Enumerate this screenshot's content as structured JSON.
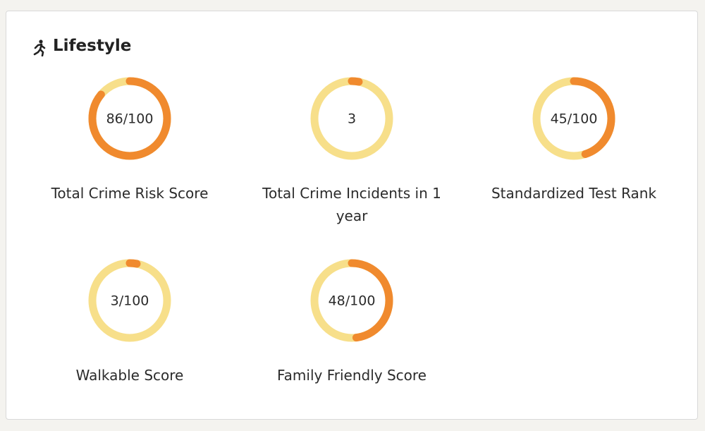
{
  "header": {
    "title": "Lifestyle"
  },
  "metrics": [
    {
      "label": "Total Crime Risk Score",
      "value": 86,
      "max": 100,
      "value_label": "86/100"
    },
    {
      "label": "Total Crime Incidents in 1 year",
      "value": 3,
      "max": 100,
      "value_label": "3"
    },
    {
      "label": "Standardized Test Rank",
      "value": 45,
      "max": 100,
      "value_label": "45/100"
    },
    {
      "label": "Walkable Score",
      "value": 3,
      "max": 100,
      "value_label": "3/100"
    },
    {
      "label": "Family Friendly Score",
      "value": 48,
      "max": 100,
      "value_label": "48/100"
    }
  ],
  "colors": {
    "track": "#f7df8a",
    "fill": "#f08a2e"
  }
}
